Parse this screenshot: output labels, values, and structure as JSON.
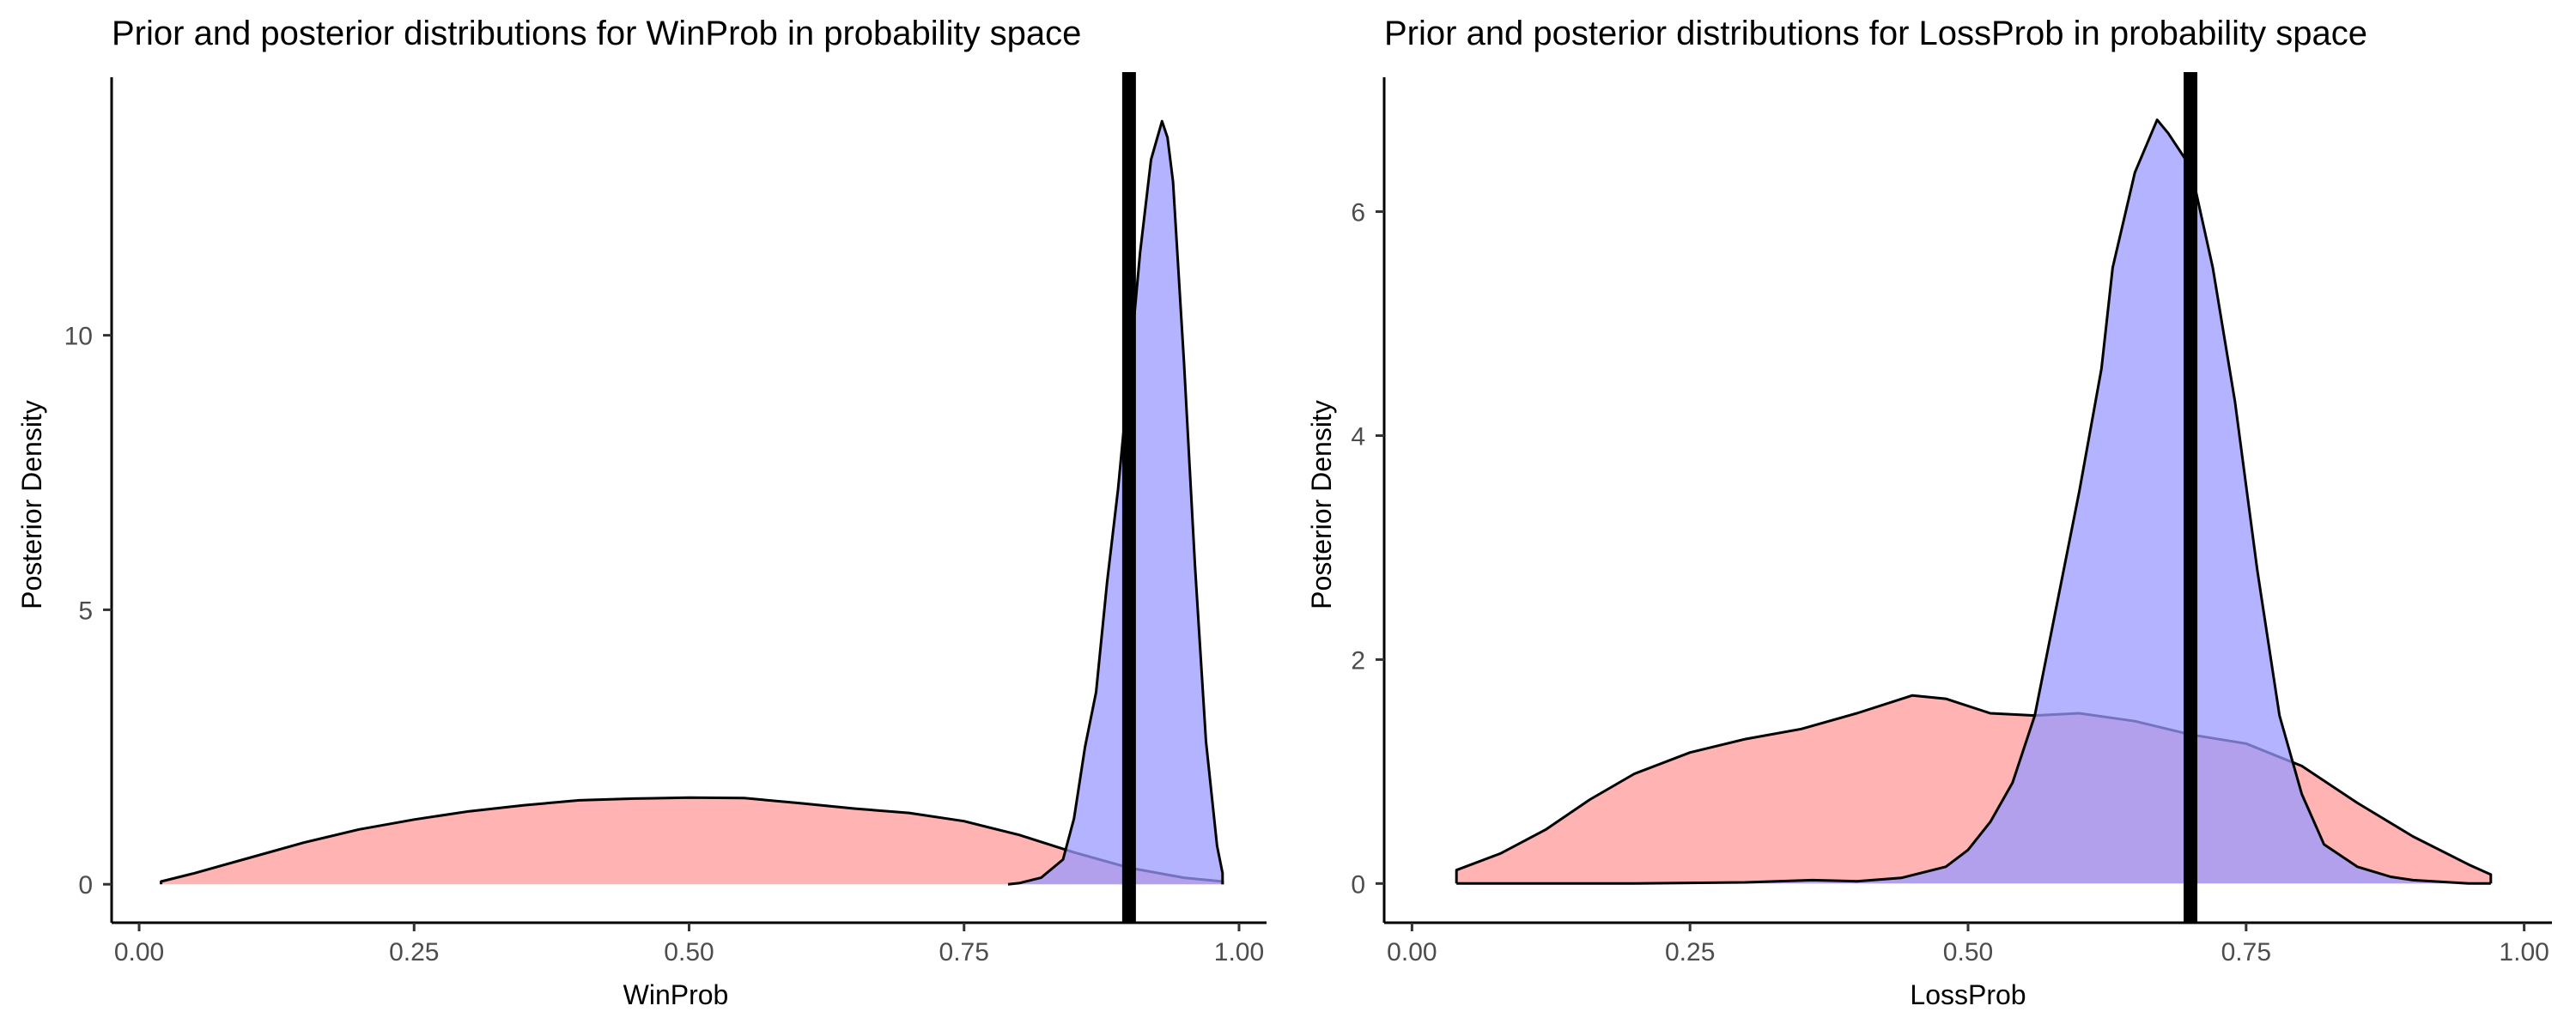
{
  "chart_data": [
    {
      "type": "area",
      "title": "Prior and posterior distributions for WinProb in probability space",
      "xlabel": "WinProb",
      "ylabel": "Posterior Density",
      "xlim": [
        -0.025,
        1.025
      ],
      "ylim": [
        -0.7,
        14.7
      ],
      "xticks": [
        0,
        0.25,
        0.5,
        0.75,
        1
      ],
      "xtick_labels": [
        "0.00",
        "0.25",
        "0.50",
        "0.75",
        "1.00"
      ],
      "yticks": [
        0,
        5,
        10
      ],
      "ytick_labels": [
        "0",
        "5",
        "10"
      ],
      "grid": false,
      "legend": "none",
      "vline": 0.9,
      "series": [
        {
          "color": "#ff9999",
          "x": [
            0.02,
            0.05,
            0.1,
            0.15,
            0.2,
            0.25,
            0.3,
            0.35,
            0.4,
            0.45,
            0.5,
            0.55,
            0.6,
            0.65,
            0.7,
            0.75,
            0.8,
            0.85,
            0.9,
            0.95,
            0.985
          ],
          "y": [
            0.05,
            0.2,
            0.48,
            0.76,
            1.0,
            1.18,
            1.33,
            1.44,
            1.53,
            1.56,
            1.58,
            1.57,
            1.48,
            1.38,
            1.3,
            1.15,
            0.9,
            0.58,
            0.3,
            0.12,
            0.05
          ]
        },
        {
          "color": "#9999ff",
          "x": [
            0.79,
            0.8,
            0.82,
            0.84,
            0.85,
            0.86,
            0.87,
            0.88,
            0.89,
            0.9,
            0.91,
            0.92,
            0.93,
            0.935,
            0.94,
            0.95,
            0.96,
            0.97,
            0.98,
            0.985
          ],
          "y": [
            0.0,
            0.02,
            0.12,
            0.45,
            1.2,
            2.5,
            3.5,
            5.5,
            7.2,
            9.3,
            11.5,
            13.2,
            13.9,
            13.6,
            12.8,
            9.5,
            5.8,
            2.6,
            0.7,
            0.2
          ]
        }
      ]
    },
    {
      "type": "area",
      "title": "Prior and posterior distributions for LossProb in probability space",
      "xlabel": "LossProb",
      "ylabel": "Posterior Density",
      "xlim": [
        -0.025,
        1.025
      ],
      "ylim": [
        -0.35,
        7.2
      ],
      "xticks": [
        0,
        0.25,
        0.5,
        0.75,
        1
      ],
      "xtick_labels": [
        "0.00",
        "0.25",
        "0.50",
        "0.75",
        "1.00"
      ],
      "yticks": [
        0,
        2,
        4,
        6
      ],
      "ytick_labels": [
        "0",
        "2",
        "4",
        "6"
      ],
      "grid": false,
      "legend": "none",
      "vline": 0.7,
      "series": [
        {
          "color": "#ff9999",
          "x": [
            0.04,
            0.08,
            0.12,
            0.16,
            0.2,
            0.25,
            0.3,
            0.35,
            0.4,
            0.45,
            0.48,
            0.52,
            0.56,
            0.6,
            0.65,
            0.7,
            0.75,
            0.8,
            0.85,
            0.9,
            0.95,
            0.97
          ],
          "y": [
            0.12,
            0.27,
            0.48,
            0.75,
            0.98,
            1.17,
            1.29,
            1.38,
            1.52,
            1.68,
            1.65,
            1.52,
            1.5,
            1.52,
            1.45,
            1.33,
            1.25,
            1.05,
            0.72,
            0.42,
            0.17,
            0.08
          ]
        },
        {
          "color": "#9999ff",
          "x": [
            0.04,
            0.2,
            0.3,
            0.36,
            0.4,
            0.44,
            0.48,
            0.5,
            0.52,
            0.54,
            0.56,
            0.58,
            0.6,
            0.62,
            0.63,
            0.65,
            0.67,
            0.68,
            0.7,
            0.72,
            0.74,
            0.76,
            0.78,
            0.8,
            0.82,
            0.85,
            0.88,
            0.9,
            0.95,
            0.97
          ],
          "y": [
            0.0,
            0.0,
            0.01,
            0.03,
            0.02,
            0.05,
            0.15,
            0.3,
            0.55,
            0.9,
            1.5,
            2.5,
            3.5,
            4.6,
            5.5,
            6.35,
            6.82,
            6.7,
            6.4,
            5.5,
            4.3,
            2.8,
            1.5,
            0.8,
            0.35,
            0.15,
            0.06,
            0.03,
            0.0,
            0.0
          ]
        }
      ]
    }
  ]
}
